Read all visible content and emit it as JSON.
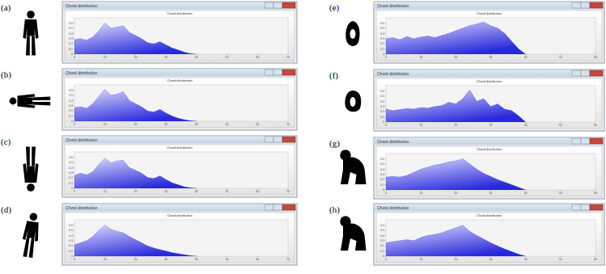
{
  "chart_data": [
    {
      "type": "area",
      "panel_label": "(a)",
      "window_title": "Chord distribution",
      "title": "Chord distribution",
      "color": "#2828dc",
      "grid": false,
      "x": [
        0,
        2,
        4,
        6,
        8,
        10,
        12,
        14,
        16,
        18,
        20,
        22,
        24,
        26,
        28,
        30,
        32,
        34,
        36,
        38,
        40
      ],
      "values": [
        0.28,
        0.3,
        0.27,
        0.33,
        0.45,
        0.6,
        0.5,
        0.52,
        0.55,
        0.42,
        0.36,
        0.3,
        0.22,
        0.2,
        0.24,
        0.18,
        0.12,
        0.08,
        0.04,
        0.01,
        0
      ],
      "xlim": [
        0,
        70
      ],
      "xticks": [
        0,
        10,
        20,
        30,
        40,
        50,
        60,
        70
      ],
      "ylim": [
        0,
        0.7
      ],
      "yticks": [
        0,
        0.1,
        0.2,
        0.3,
        0.4,
        0.5,
        0.6
      ]
    },
    {
      "type": "area",
      "panel_label": "(b)",
      "window_title": "Chord distribution",
      "title": "Chord distribution",
      "color": "#2828dc",
      "grid": false,
      "x": [
        0,
        2,
        4,
        6,
        8,
        10,
        12,
        14,
        16,
        18,
        20,
        22,
        24,
        26,
        28,
        30,
        32,
        34,
        36,
        38,
        40
      ],
      "values": [
        0.26,
        0.28,
        0.25,
        0.34,
        0.48,
        0.62,
        0.5,
        0.52,
        0.57,
        0.4,
        0.34,
        0.28,
        0.2,
        0.18,
        0.23,
        0.16,
        0.1,
        0.06,
        0.03,
        0.01,
        0
      ],
      "xlim": [
        0,
        70
      ],
      "xticks": [
        0,
        10,
        20,
        30,
        40,
        50,
        60,
        70
      ],
      "ylim": [
        0,
        0.7
      ],
      "yticks": [
        0,
        0.1,
        0.2,
        0.3,
        0.4,
        0.5,
        0.6
      ]
    },
    {
      "type": "area",
      "panel_label": "(c)",
      "window_title": "Chord distribution",
      "title": "Chord distribution",
      "color": "#2828dc",
      "grid": false,
      "x": [
        0,
        2,
        4,
        6,
        8,
        10,
        12,
        14,
        16,
        18,
        20,
        22,
        24,
        26,
        28,
        30,
        32,
        34,
        36,
        38,
        40
      ],
      "values": [
        0.25,
        0.29,
        0.26,
        0.32,
        0.46,
        0.58,
        0.49,
        0.53,
        0.54,
        0.4,
        0.35,
        0.29,
        0.21,
        0.19,
        0.24,
        0.17,
        0.11,
        0.07,
        0.03,
        0.01,
        0
      ],
      "xlim": [
        0,
        70
      ],
      "xticks": [
        0,
        10,
        20,
        30,
        40,
        50,
        60,
        70
      ],
      "ylim": [
        0,
        0.7
      ],
      "yticks": [
        0,
        0.1,
        0.2,
        0.3,
        0.4,
        0.5,
        0.6
      ]
    },
    {
      "type": "area",
      "panel_label": "(d)",
      "window_title": "Chord distribution",
      "title": "Chord distribution",
      "color": "#2828dc",
      "grid": false,
      "x": [
        0,
        2,
        4,
        6,
        8,
        10,
        12,
        14,
        16,
        18,
        20,
        22,
        24,
        26,
        28,
        30,
        32,
        34,
        36,
        38,
        40
      ],
      "values": [
        0.22,
        0.26,
        0.3,
        0.38,
        0.5,
        0.6,
        0.52,
        0.48,
        0.45,
        0.38,
        0.32,
        0.26,
        0.2,
        0.16,
        0.13,
        0.1,
        0.07,
        0.05,
        0.03,
        0.01,
        0
      ],
      "xlim": [
        0,
        70
      ],
      "xticks": [
        0,
        10,
        20,
        30,
        40,
        50,
        60,
        70
      ],
      "ylim": [
        0,
        0.7
      ],
      "yticks": [
        0,
        0.1,
        0.2,
        0.3,
        0.4,
        0.5,
        0.6
      ]
    },
    {
      "type": "area",
      "panel_label": "(e)",
      "window_title": "Chord distribution",
      "title": "Chord distribution",
      "color": "#2828dc",
      "grid": false,
      "x": [
        0,
        2,
        4,
        6,
        8,
        10,
        12,
        14,
        16,
        18,
        20,
        22,
        24,
        26,
        28,
        30,
        32,
        34,
        36,
        38,
        40
      ],
      "values": [
        0.3,
        0.32,
        0.28,
        0.34,
        0.3,
        0.33,
        0.35,
        0.32,
        0.36,
        0.4,
        0.45,
        0.5,
        0.55,
        0.58,
        0.62,
        0.55,
        0.5,
        0.4,
        0.25,
        0.1,
        0
      ],
      "xlim": [
        0,
        60
      ],
      "xticks": [
        0,
        10,
        20,
        30,
        40,
        50,
        60
      ],
      "ylim": [
        0,
        0.7
      ],
      "yticks": [
        0,
        0.1,
        0.2,
        0.3,
        0.4,
        0.5,
        0.6
      ]
    },
    {
      "type": "area",
      "panel_label": "(f)",
      "window_title": "Chord distribution",
      "title": "Chord distribution",
      "color": "#2828dc",
      "grid": false,
      "x": [
        0,
        2,
        4,
        6,
        8,
        10,
        12,
        14,
        16,
        18,
        20,
        22,
        24,
        26,
        28,
        30,
        32,
        34,
        36,
        38,
        40
      ],
      "values": [
        0.25,
        0.22,
        0.24,
        0.26,
        0.25,
        0.28,
        0.27,
        0.3,
        0.32,
        0.38,
        0.35,
        0.45,
        0.62,
        0.4,
        0.45,
        0.3,
        0.35,
        0.25,
        0.22,
        0.12,
        0
      ],
      "xlim": [
        0,
        60
      ],
      "xticks": [
        0,
        10,
        20,
        30,
        40,
        50,
        60
      ],
      "ylim": [
        0,
        0.7
      ],
      "yticks": [
        0,
        0.1,
        0.2,
        0.3,
        0.4,
        0.5,
        0.6
      ]
    },
    {
      "type": "area",
      "panel_label": "(g)",
      "window_title": "Chord distribution",
      "title": "Chord distribution",
      "color": "#2828dc",
      "grid": false,
      "x": [
        0,
        2,
        4,
        6,
        8,
        10,
        12,
        14,
        16,
        18,
        20,
        22,
        24,
        26,
        28,
        30,
        32,
        34,
        36,
        38,
        40
      ],
      "values": [
        0.25,
        0.26,
        0.25,
        0.28,
        0.34,
        0.4,
        0.44,
        0.48,
        0.5,
        0.54,
        0.56,
        0.6,
        0.5,
        0.4,
        0.32,
        0.26,
        0.2,
        0.15,
        0.1,
        0.05,
        0
      ],
      "xlim": [
        0,
        60
      ],
      "xticks": [
        0,
        10,
        20,
        30,
        40,
        50,
        60
      ],
      "ylim": [
        0,
        0.7
      ],
      "yticks": [
        0,
        0.1,
        0.2,
        0.3,
        0.4,
        0.5,
        0.6
      ]
    },
    {
      "type": "area",
      "panel_label": "(h)",
      "window_title": "Chord distribution",
      "title": "Chord distribution",
      "color": "#2828dc",
      "grid": false,
      "x": [
        0,
        2,
        4,
        6,
        8,
        10,
        12,
        14,
        16,
        18,
        20,
        22,
        24,
        26,
        28,
        30,
        32,
        34,
        36,
        38,
        40
      ],
      "values": [
        0.26,
        0.28,
        0.3,
        0.32,
        0.3,
        0.36,
        0.4,
        0.42,
        0.45,
        0.5,
        0.55,
        0.6,
        0.48,
        0.4,
        0.33,
        0.26,
        0.2,
        0.14,
        0.09,
        0.04,
        0
      ],
      "xlim": [
        0,
        60
      ],
      "xticks": [
        0,
        10,
        20,
        30,
        40,
        50,
        60
      ],
      "ylim": [
        0,
        0.7
      ],
      "yticks": [
        0,
        0.1,
        0.2,
        0.3,
        0.4,
        0.5,
        0.6
      ]
    }
  ]
}
